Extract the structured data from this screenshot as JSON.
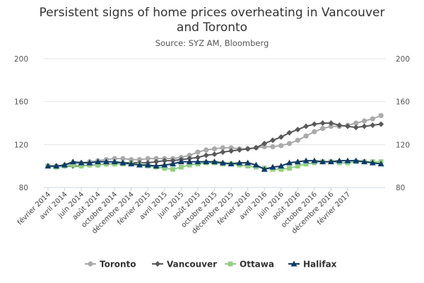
{
  "chart_data": {
    "type": "line",
    "title_line1": "Persistent signs of home prices overheating in Vancouver",
    "title_line2": "and Toronto",
    "subtitle": "Source: SYZ AM, Bloomberg",
    "ylim": [
      80,
      200
    ],
    "yticks": [
      80,
      120,
      160,
      200
    ],
    "grid": true,
    "legend_position": "bottom",
    "x_tick_labels": [
      "février 2014",
      "avril 2014",
      "juin 2014",
      "août 2014",
      "octobre 2014",
      "décembre 2014",
      "février 2015",
      "avril 2015",
      "juin 2015",
      "août 2015",
      "octobre 2015",
      "décembre 2015",
      "février 2016",
      "avril 2016",
      "juin 2016",
      "août 2016",
      "octobre 2016",
      "décembre 2016",
      "février 2017"
    ],
    "x_tick_every": 2,
    "series": [
      {
        "name": "Toronto",
        "color": "#aaaaaa",
        "marker": "circle",
        "values": [
          100,
          100,
          101,
          102,
          103,
          104,
          105,
          106,
          107,
          107,
          106,
          106,
          107,
          107,
          107,
          107,
          108,
          110,
          113,
          115,
          116,
          117,
          117,
          116,
          116,
          117,
          118,
          118,
          119,
          121,
          124,
          128,
          132,
          135,
          137,
          137,
          138,
          140,
          142,
          144,
          147
        ]
      },
      {
        "name": "Vancouver",
        "color": "#595959",
        "marker": "diamond",
        "values": [
          100,
          100,
          100,
          100,
          100,
          101,
          101,
          102,
          102,
          103,
          103,
          103,
          103,
          104,
          105,
          105,
          106,
          107,
          108,
          110,
          111,
          113,
          114,
          115,
          116,
          117,
          121,
          124,
          127,
          131,
          134,
          137,
          139,
          140,
          140,
          138,
          137,
          136,
          137,
          138,
          139
        ]
      },
      {
        "name": "Ottawa",
        "color": "#90d07c",
        "marker": "square",
        "values": [
          100,
          99,
          100,
          101,
          100,
          101,
          101,
          102,
          102,
          102,
          102,
          101,
          100,
          99,
          98,
          97,
          99,
          101,
          102,
          103,
          103,
          102,
          102,
          101,
          100,
          99,
          98,
          97,
          97,
          98,
          100,
          102,
          103,
          104,
          104,
          103,
          103,
          104,
          104,
          104,
          104
        ]
      },
      {
        "name": "Halifax",
        "color": "#0b3b6b",
        "marker": "triangle",
        "values": [
          100,
          100,
          101,
          104,
          103,
          103,
          104,
          104,
          104,
          103,
          102,
          101,
          101,
          100,
          101,
          102,
          104,
          104,
          104,
          104,
          104,
          103,
          102,
          103,
          103,
          101,
          97,
          99,
          100,
          103,
          104,
          105,
          105,
          104,
          104,
          105,
          105,
          105,
          104,
          103,
          102
        ]
      }
    ]
  }
}
